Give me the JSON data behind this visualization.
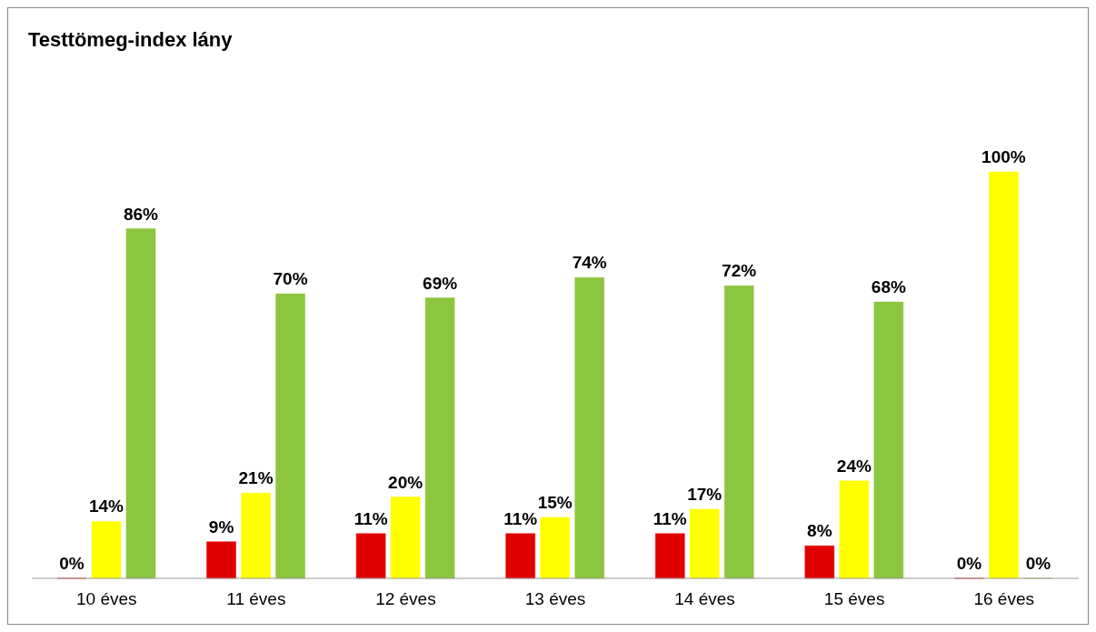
{
  "chart_data": {
    "type": "bar",
    "title": "Testtömeg-index lány",
    "categories": [
      "10 éves",
      "11 éves",
      "12 éves",
      "13 éves",
      "14 éves",
      "15 éves",
      "16 éves"
    ],
    "series": [
      {
        "color": "#e00000",
        "values": [
          0,
          9,
          11,
          11,
          11,
          8,
          0
        ],
        "value_labels": [
          "0%",
          "9%",
          "11%",
          "11%",
          "11%",
          "8%",
          "0%"
        ]
      },
      {
        "color": "#ffff00",
        "values": [
          14,
          21,
          20,
          15,
          17,
          24,
          100
        ],
        "value_labels": [
          "14%",
          "21%",
          "20%",
          "15%",
          "17%",
          "24%",
          "100%"
        ]
      },
      {
        "color": "#8cc63f",
        "values": [
          86,
          70,
          69,
          74,
          72,
          68,
          0
        ],
        "value_labels": [
          "86%",
          "70%",
          "69%",
          "74%",
          "72%",
          "68%",
          "0%"
        ]
      }
    ],
    "grid": false,
    "legend": false
  }
}
